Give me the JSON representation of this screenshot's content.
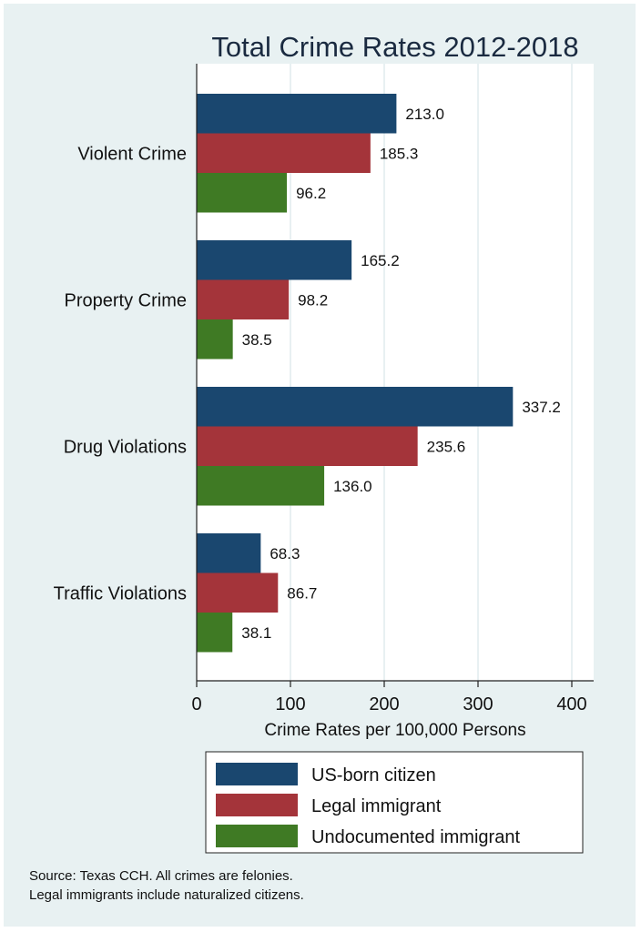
{
  "chart_data": {
    "type": "bar",
    "orientation": "horizontal",
    "title": "Total Crime Rates 2012-2018",
    "xlabel": "Crime Rates per 100,000 Persons",
    "ylabel": "",
    "xlim": [
      0,
      420
    ],
    "xticks": [
      0,
      100,
      200,
      300,
      400
    ],
    "grid": true,
    "categories": [
      "Violent Crime",
      "Property Crime",
      "Drug Violations",
      "Traffic Violations"
    ],
    "series": [
      {
        "name": "US-born citizen",
        "color": "#1a476f",
        "values": [
          213.0,
          165.2,
          337.2,
          68.3
        ],
        "labels": [
          "213.0",
          "165.2",
          "337.2",
          "68.3"
        ]
      },
      {
        "name": "Legal immigrant",
        "color": "#a4343a",
        "values": [
          185.3,
          98.2,
          235.6,
          86.7
        ],
        "labels": [
          "185.3",
          "98.2",
          "235.6",
          "86.7"
        ]
      },
      {
        "name": "Undocumented immigrant",
        "color": "#3f7a24",
        "values": [
          96.2,
          38.5,
          136.0,
          38.1
        ],
        "labels": [
          "96.2",
          "38.5",
          "136.0",
          "38.1"
        ]
      }
    ],
    "legend_position": "bottom",
    "notes": [
      "Source: Texas CCH. All crimes are felonies.",
      "Legal immigrants include naturalized citizens."
    ]
  }
}
